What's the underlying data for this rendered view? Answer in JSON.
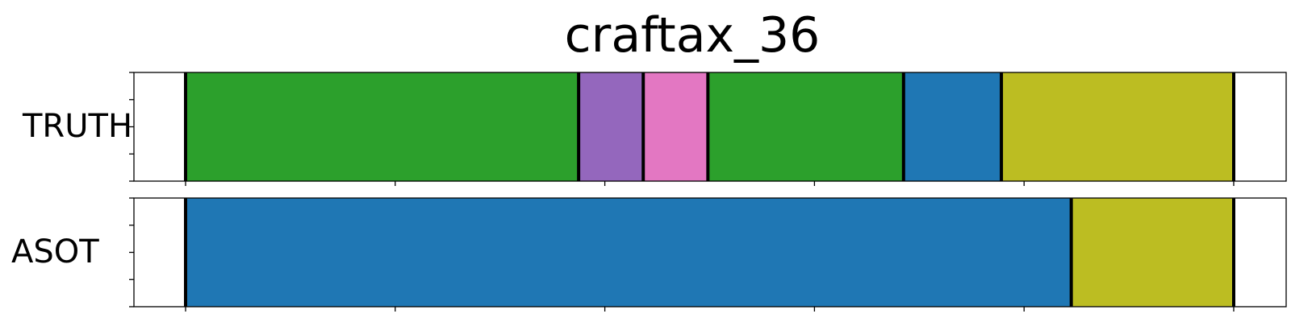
{
  "chart_data": {
    "type": "segment_timeline",
    "title": "craftax_36",
    "xlim": [
      0,
      600
    ],
    "x_ticks": [
      0,
      120,
      240,
      360,
      480,
      600
    ],
    "rows": [
      {
        "label": "TRUTH",
        "segments": [
          {
            "start": 0,
            "end": 225,
            "color": "#2ca02c"
          },
          {
            "start": 225,
            "end": 262,
            "color": "#9467bd"
          },
          {
            "start": 262,
            "end": 299,
            "color": "#e377c2"
          },
          {
            "start": 299,
            "end": 411,
            "color": "#2ca02c"
          },
          {
            "start": 411,
            "end": 467,
            "color": "#1f77b4"
          },
          {
            "start": 467,
            "end": 600,
            "color": "#bcbd22"
          }
        ]
      },
      {
        "label": "ASOT",
        "segments": [
          {
            "start": 0,
            "end": 507,
            "color": "#1f77b4"
          },
          {
            "start": 507,
            "end": 600,
            "color": "#bcbd22"
          }
        ]
      }
    ]
  }
}
